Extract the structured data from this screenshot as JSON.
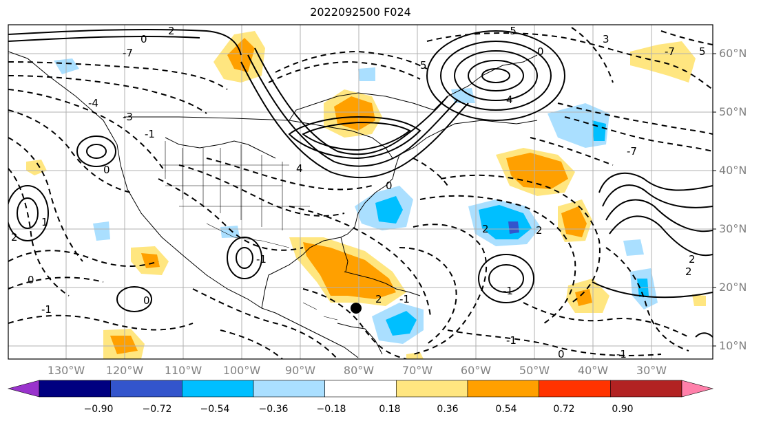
{
  "title": "2022092500 F024",
  "lat_labels": [
    "60°N",
    "50°N",
    "40°N",
    "30°N",
    "20°N",
    "10°N"
  ],
  "lon_labels": [
    "130°W",
    "120°W",
    "110°W",
    "100°W",
    "90°W",
    "80°W",
    "70°W",
    "60°W",
    "50°W",
    "40°W",
    "30°W"
  ],
  "colorbar": {
    "ticks": [
      "−0.90",
      "−0.72",
      "−0.54",
      "−0.36",
      "−0.18",
      "0.18",
      "0.36",
      "0.54",
      "0.72",
      "0.90"
    ],
    "colors": [
      "#9933cc",
      "#000080",
      "#3355cc",
      "#00bfff",
      "#aadfff",
      "#ffffff",
      "#ffe680",
      "#ffa000",
      "#ff3300",
      "#b22222",
      "#ff80aa"
    ]
  },
  "contour_labels": [
    "0",
    "2",
    "-2",
    "1",
    "-1",
    "3",
    "4",
    "-4",
    "5",
    "-5",
    "-3",
    "0",
    "-1",
    "2",
    "-2",
    "-1",
    "1",
    "0",
    "2",
    "1",
    "-1",
    "2",
    "-7"
  ],
  "colors": {
    "orange": "#ffa000",
    "yellow": "#ffe680",
    "lightblue": "#aadfff",
    "blue": "#00bfff",
    "darkblue": "#3355cc",
    "gridline": "#b0b0b0"
  },
  "marker": "storm-center-marker"
}
